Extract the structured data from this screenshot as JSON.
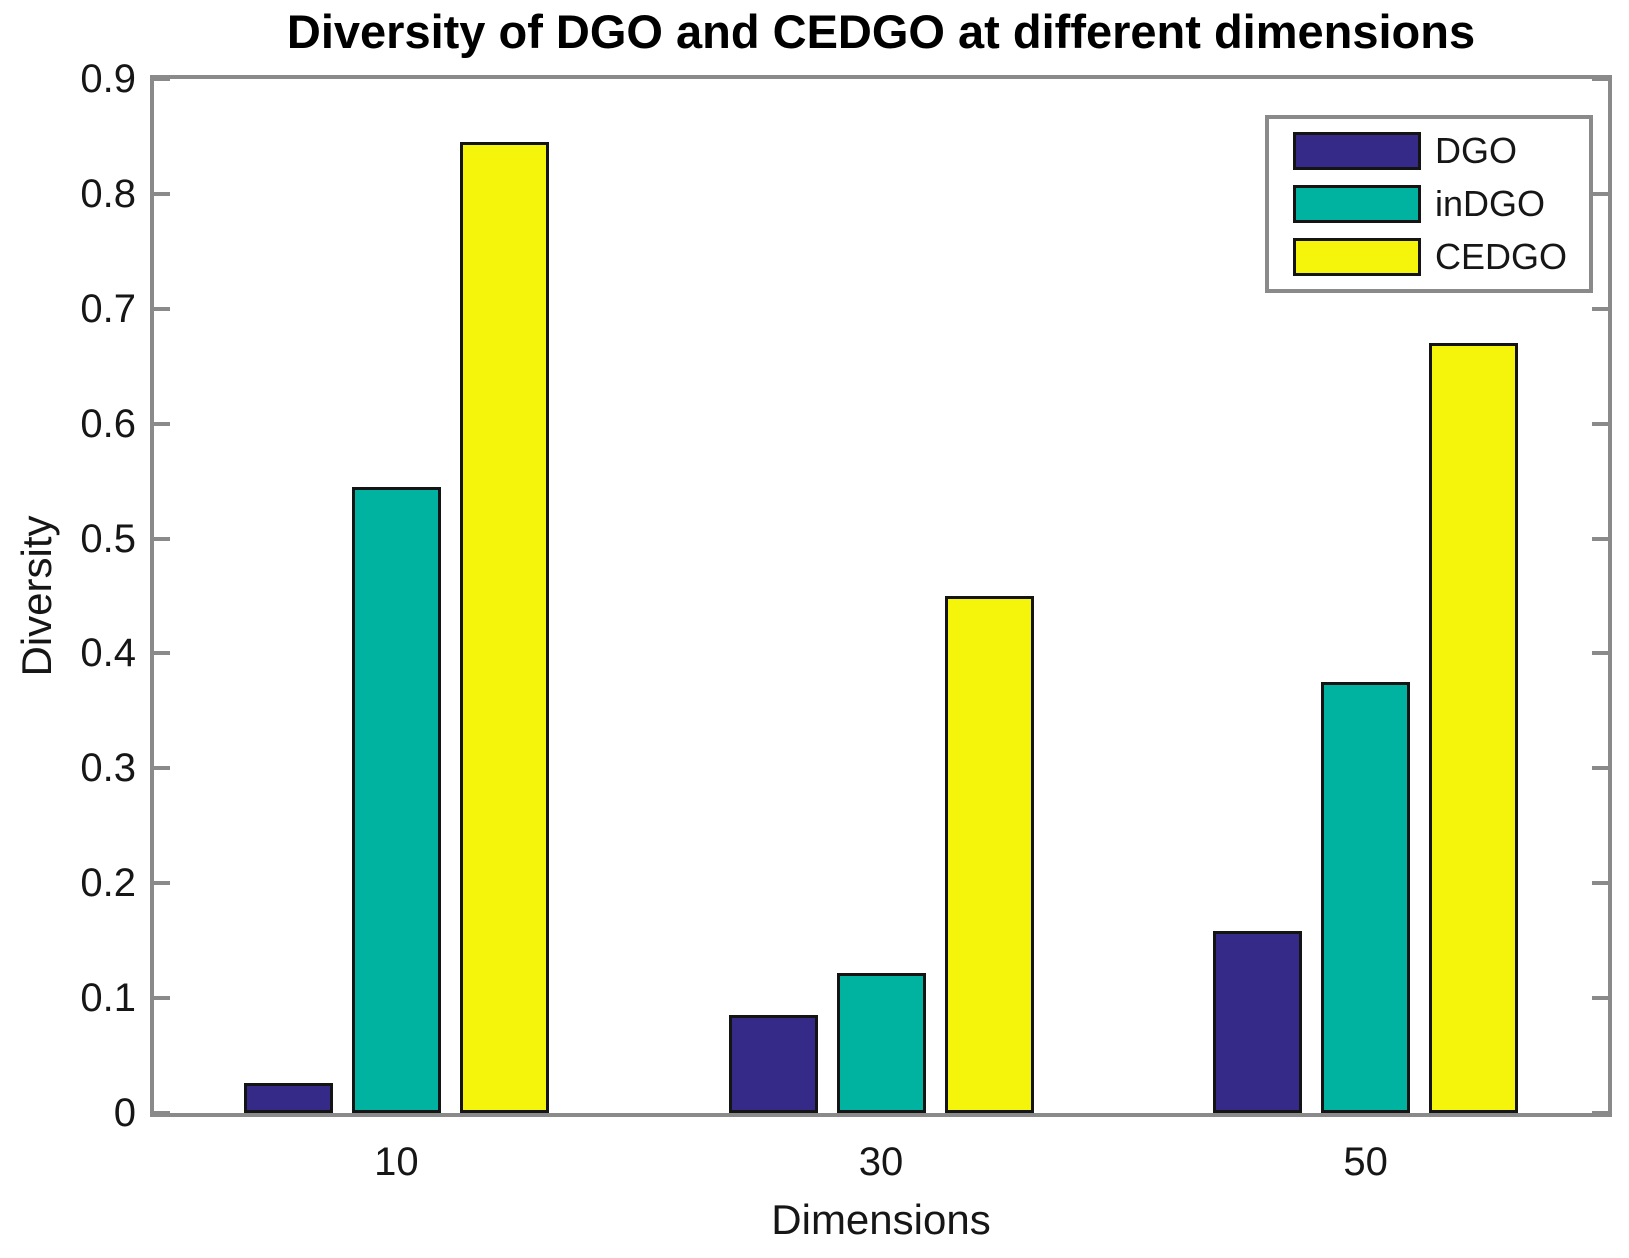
{
  "chart_data": {
    "type": "bar",
    "title": "Diversity of DGO and CEDGO at different dimensions",
    "xlabel": "Dimensions",
    "ylabel": "Diversity",
    "categories": [
      "10",
      "30",
      "50"
    ],
    "series": [
      {
        "name": "DGO",
        "color": "#352A87",
        "values": [
          0.026,
          0.085,
          0.158
        ]
      },
      {
        "name": "inDGO",
        "color": "#00B2A0",
        "values": [
          0.545,
          0.122,
          0.375
        ]
      },
      {
        "name": "CEDGO",
        "color": "#F4F50A",
        "values": [
          0.845,
          0.45,
          0.67
        ]
      }
    ],
    "ylim": [
      0,
      0.9
    ],
    "yticks": [
      "0",
      "0.1",
      "0.2",
      "0.3",
      "0.4",
      "0.5",
      "0.6",
      "0.7",
      "0.8",
      "0.9"
    ],
    "grid": false,
    "legend_position": "top-right"
  },
  "colors": {
    "axis": "#8A8A8A",
    "bar_border": "#141414",
    "text": "#161616",
    "title": "#000000",
    "background": "#FFFFFF"
  }
}
